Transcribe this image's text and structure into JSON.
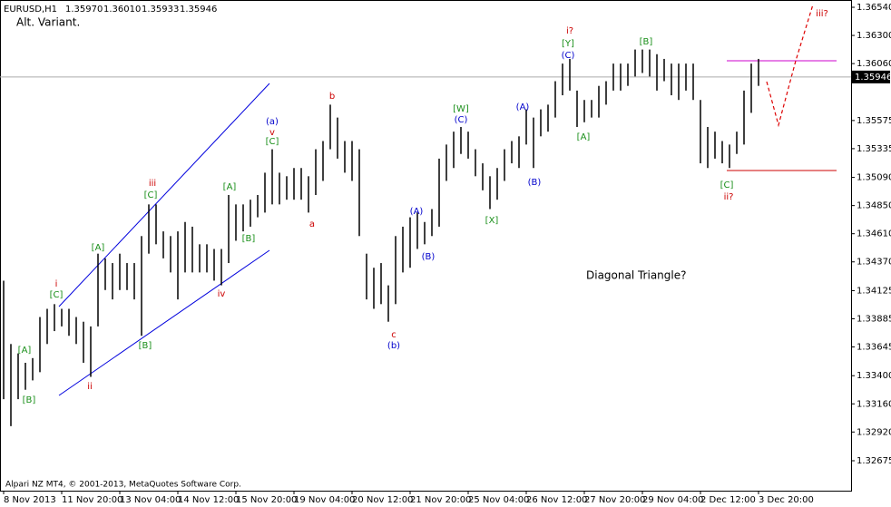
{
  "chart_data": {
    "type": "hilo",
    "symbol": "EURUSD,H1",
    "header_values": [
      "1.35970",
      "1.36010",
      "1.35933",
      "1.35946"
    ],
    "subtitle": "Alt. Variant.",
    "annotation": "Diagonal Triangle?",
    "footer": "Alpari NZ MT4, © 2001-2013, MetaQuotes Software Corp.",
    "bar_color": "#000000",
    "categories": [
      "8 Nov 2013",
      null,
      null,
      null,
      null,
      null,
      null,
      null,
      "11 Nov 20:00",
      null,
      null,
      null,
      null,
      null,
      null,
      null,
      "13 Nov 04:00",
      null,
      null,
      null,
      null,
      null,
      null,
      null,
      "14 Nov 12:00",
      null,
      null,
      null,
      null,
      null,
      null,
      null,
      "15 Nov 20:00",
      null,
      null,
      null,
      null,
      null,
      null,
      null,
      "19 Nov 04:00",
      null,
      null,
      null,
      null,
      null,
      null,
      null,
      "20 Nov 12:00",
      null,
      null,
      null,
      null,
      null,
      null,
      null,
      "21 Nov 20:00",
      null,
      null,
      null,
      null,
      null,
      null,
      null,
      "25 Nov 04:00",
      null,
      null,
      null,
      null,
      null,
      null,
      null,
      "26 Nov 12:00",
      null,
      null,
      null,
      null,
      null,
      null,
      null,
      "27 Nov 20:00",
      null,
      null,
      null,
      null,
      null,
      null,
      null,
      "29 Nov 04:00",
      null,
      null,
      null,
      null,
      null,
      null,
      null,
      "2 Dec 12:00",
      null,
      null,
      null,
      null,
      null,
      null,
      null,
      "3 Dec 20:00"
    ],
    "high": [
      1.3421,
      1.3367,
      1.3359,
      1.3351,
      1.3355,
      1.339,
      1.3397,
      1.3401,
      1.3397,
      1.3397,
      1.339,
      1.3386,
      1.3382,
      1.3444,
      1.344,
      1.3436,
      1.3444,
      1.3436,
      1.3436,
      1.3459,
      1.3486,
      1.3486,
      1.3463,
      1.3459,
      1.3463,
      1.3471,
      1.3467,
      1.3452,
      1.3452,
      1.3448,
      1.3448,
      1.3494,
      1.3486,
      1.3486,
      1.349,
      1.3494,
      1.3513,
      1.3533,
      1.3513,
      1.351,
      1.3517,
      1.3517,
      1.351,
      1.3533,
      1.354,
      1.3571,
      1.356,
      1.354,
      1.354,
      1.3533,
      1.3444,
      1.3432,
      1.3436,
      1.3417,
      1.3459,
      1.3467,
      1.3475,
      1.3479,
      1.3471,
      1.3482,
      1.3525,
      1.3537,
      1.3548,
      1.3552,
      1.3548,
      1.3533,
      1.3521,
      1.351,
      1.3517,
      1.3533,
      1.354,
      1.3544,
      1.3567,
      1.356,
      1.3567,
      1.3571,
      1.3591,
      1.3606,
      1.361,
      1.3583,
      1.3575,
      1.3575,
      1.3587,
      1.3591,
      1.3606,
      1.3606,
      1.3606,
      1.3618,
      1.3618,
      1.3618,
      1.3614,
      1.361,
      1.3606,
      1.3606,
      1.3606,
      1.3606,
      1.3575,
      1.3552,
      1.3548,
      1.354,
      1.3537,
      1.3548,
      1.3583,
      1.3606,
      1.361
    ],
    "low": [
      1.332,
      1.3297,
      1.332,
      1.3328,
      1.3336,
      1.3343,
      1.3367,
      1.3378,
      1.3382,
      1.3374,
      1.3367,
      1.3351,
      1.3339,
      1.3382,
      1.3413,
      1.3405,
      1.3413,
      1.3413,
      1.3405,
      1.3374,
      1.3444,
      1.3452,
      1.344,
      1.3428,
      1.3405,
      1.3428,
      1.3428,
      1.3428,
      1.3428,
      1.3421,
      1.3417,
      1.3436,
      1.3455,
      1.3463,
      1.3467,
      1.3475,
      1.3479,
      1.3486,
      1.3486,
      1.349,
      1.349,
      1.349,
      1.3479,
      1.3494,
      1.3506,
      1.3533,
      1.3525,
      1.3513,
      1.3506,
      1.3459,
      1.3405,
      1.3397,
      1.3401,
      1.3386,
      1.3401,
      1.3428,
      1.3432,
      1.3448,
      1.3452,
      1.3459,
      1.3467,
      1.3506,
      1.3517,
      1.3529,
      1.3525,
      1.351,
      1.3498,
      1.3482,
      1.349,
      1.3506,
      1.3521,
      1.3517,
      1.3537,
      1.3517,
      1.3544,
      1.3548,
      1.356,
      1.3579,
      1.3583,
      1.3552,
      1.3556,
      1.356,
      1.356,
      1.3571,
      1.3583,
      1.3583,
      1.3587,
      1.3595,
      1.3598,
      1.3595,
      1.3583,
      1.3591,
      1.3579,
      1.3575,
      1.3583,
      1.3575,
      1.3521,
      1.3517,
      1.3525,
      1.3521,
      1.3517,
      1.3529,
      1.3537,
      1.3564,
      1.3587
    ],
    "ylim": [
      1.3242,
      1.36602
    ],
    "yticks": [
      {
        "value": 1.3654,
        "label": "1.36540"
      },
      {
        "value": 1.363,
        "label": "1.36300"
      },
      {
        "value": 1.3606,
        "label": "1.36060"
      },
      {
        "value": 1.35575,
        "label": "1.35575"
      },
      {
        "value": 1.35335,
        "label": "1.35335"
      },
      {
        "value": 1.3509,
        "label": "1.35090"
      },
      {
        "value": 1.3485,
        "label": "1.34850"
      },
      {
        "value": 1.3461,
        "label": "1.34610"
      },
      {
        "value": 1.3437,
        "label": "1.34370"
      },
      {
        "value": 1.34125,
        "label": "1.34125"
      },
      {
        "value": 1.33885,
        "label": "1.33885"
      },
      {
        "value": 1.33645,
        "label": "1.33645"
      },
      {
        "value": 1.334,
        "label": "1.33400"
      },
      {
        "value": 1.3316,
        "label": "1.33160"
      },
      {
        "value": 1.3292,
        "label": "1.32920"
      },
      {
        "value": 1.32675,
        "label": "1.32675"
      }
    ],
    "last_price": {
      "value": 1.35946,
      "label": "1.35946"
    },
    "wave_labels": [
      {
        "text": "[A]",
        "color": "#1a8f1a"
      },
      {
        "text": "[B]",
        "color": "#1a8f1a"
      },
      {
        "text": "[C]",
        "color": "#1a8f1a"
      },
      {
        "text": "[A]",
        "color": "#1a8f1a"
      },
      {
        "text": "[B]",
        "color": "#1a8f1a"
      },
      {
        "text": "[C]",
        "color": "#1a8f1a"
      },
      {
        "text": "[A]",
        "color": "#1a8f1a"
      },
      {
        "text": "[B]",
        "color": "#1a8f1a"
      },
      {
        "text": "[C]",
        "color": "#1a8f1a"
      },
      {
        "text": "[W]",
        "color": "#1a8f1a"
      },
      {
        "text": "[X]",
        "color": "#1a8f1a"
      },
      {
        "text": "[A]",
        "color": "#1a8f1a"
      },
      {
        "text": "[Y]",
        "color": "#1a8f1a"
      },
      {
        "text": "[B]",
        "color": "#1a8f1a"
      },
      {
        "text": "[C]",
        "color": "#1a8f1a"
      },
      {
        "text": "i",
        "color": "#cc0000"
      },
      {
        "text": "ii",
        "color": "#cc0000"
      },
      {
        "text": "iii",
        "color": "#cc0000"
      },
      {
        "text": "iv",
        "color": "#cc0000"
      },
      {
        "text": "v",
        "color": "#cc0000"
      },
      {
        "text": "b",
        "color": "#cc0000"
      },
      {
        "text": "a",
        "color": "#cc0000"
      },
      {
        "text": "c",
        "color": "#cc0000"
      },
      {
        "text": "i?",
        "color": "#cc0000"
      },
      {
        "text": "ii?",
        "color": "#cc0000"
      },
      {
        "text": "iii?",
        "color": "#cc0000"
      },
      {
        "text": "(a)",
        "color": "#0000cc"
      },
      {
        "text": "(b)",
        "color": "#0000cc"
      },
      {
        "text": "(A)",
        "color": "#0000cc"
      },
      {
        "text": "(B)",
        "color": "#0000cc"
      },
      {
        "text": "(C)",
        "color": "#0000cc"
      },
      {
        "text": "(A)",
        "color": "#0000cc"
      },
      {
        "text": "(B)",
        "color": "#0000cc"
      },
      {
        "text": "(C)",
        "color": "#0000cc"
      }
    ]
  }
}
